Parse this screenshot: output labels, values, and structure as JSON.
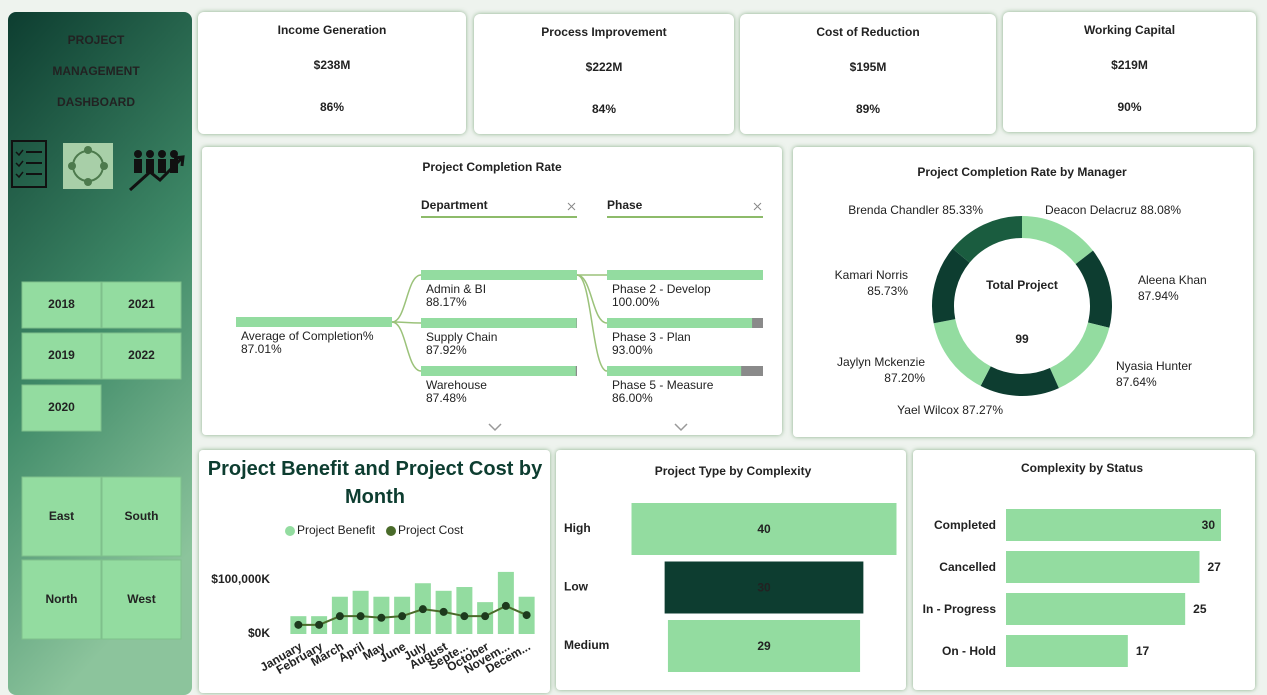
{
  "sidebar": {
    "title_lines": [
      "PROJECT",
      "MANAGEMENT",
      "DASHBOARD"
    ],
    "years": [
      "2018",
      "2021",
      "2019",
      "2022",
      "2020"
    ],
    "regions": [
      "East",
      "South",
      "North",
      "West"
    ]
  },
  "kpis": [
    {
      "title": "Income Generation",
      "amount": "$238M",
      "percent": "86%"
    },
    {
      "title": "Process Improvement",
      "amount": "$222M",
      "percent": "84%"
    },
    {
      "title": "Cost of Reduction",
      "amount": "$195M",
      "percent": "89%"
    },
    {
      "title": "Working Capital",
      "amount": "$219M",
      "percent": "90%"
    }
  ],
  "completion_tree": {
    "title": "Project Completion Rate",
    "filters": [
      "Department",
      "Phase"
    ],
    "root": {
      "label": "Average of Completion%",
      "value": 87.01,
      "value_label": "87.01%"
    },
    "departments": [
      {
        "label": "Admin & BI",
        "value": 88.17,
        "value_label": "88.17%"
      },
      {
        "label": "Supply Chain",
        "value": 87.92,
        "value_label": "87.92%"
      },
      {
        "label": "Warehouse",
        "value": 87.48,
        "value_label": "87.48%"
      }
    ],
    "phases": [
      {
        "label": "Phase 2 - Develop",
        "value": 100,
        "value_label": "100.00%"
      },
      {
        "label": "Phase 3 - Plan",
        "value": 93,
        "value_label": "93.00%"
      },
      {
        "label": "Phase 5 - Measure",
        "value": 86,
        "value_label": "86.00%"
      }
    ]
  },
  "chart_data": [
    {
      "type": "donut",
      "title": "Project Completion Rate by Manager",
      "center_label": "Total Project",
      "center_value": 99,
      "categories": [
        "Deacon Delacruz",
        "Aleena Khan",
        "Nyasia Hunter",
        "Yael Wilcox",
        "Jaylyn Mckenzie",
        "Kamari Norris",
        "Brenda Chandler"
      ],
      "values": [
        88.08,
        87.94,
        87.64,
        87.27,
        87.2,
        85.73,
        85.33
      ],
      "value_labels": [
        "88.08%",
        "87.94%",
        "87.64%",
        "87.27%",
        "87.20%",
        "85.73%",
        "85.33%"
      ],
      "colors": [
        "#93dca0",
        "#0d3d30",
        "#93dca0",
        "#0d3d30",
        "#93dca0",
        "#0d3d30",
        "#1a5c3f"
      ]
    },
    {
      "type": "bar_line",
      "title": "Project Benefit and Project Cost by Month",
      "categories": [
        "January",
        "February",
        "March",
        "April",
        "May",
        "June",
        "July",
        "August",
        "Septe...",
        "October",
        "Novem...",
        "Decem..."
      ],
      "series": [
        {
          "name": "Project Benefit",
          "color": "#93dca0",
          "values": [
            33000,
            33000,
            69000,
            80000,
            69000,
            69000,
            94000,
            80000,
            87000,
            59000,
            115000,
            69000
          ]
        },
        {
          "name": "Project Cost",
          "color": "#4a6b2a",
          "values": [
            17000,
            17000,
            33000,
            33000,
            30000,
            33000,
            46000,
            41000,
            33000,
            33000,
            52000,
            35000
          ]
        }
      ],
      "ylim": [
        0,
        130000
      ],
      "yticks": [
        {
          "value": 0,
          "label": "$0K"
        },
        {
          "value": 100000,
          "label": "$100,000K"
        }
      ]
    },
    {
      "type": "funnel",
      "title": "Project Type by Complexity",
      "categories": [
        "High",
        "Low",
        "Medium"
      ],
      "values": [
        40,
        30,
        29
      ],
      "colors": [
        "#93dca0",
        "#0d3d30",
        "#93dca0"
      ]
    },
    {
      "type": "hbar",
      "title": "Complexity by Status",
      "categories": [
        "Completed",
        "Cancelled",
        "In - Progress",
        "On - Hold"
      ],
      "values": [
        30,
        27,
        25,
        17
      ],
      "color": "#93dca0"
    }
  ]
}
